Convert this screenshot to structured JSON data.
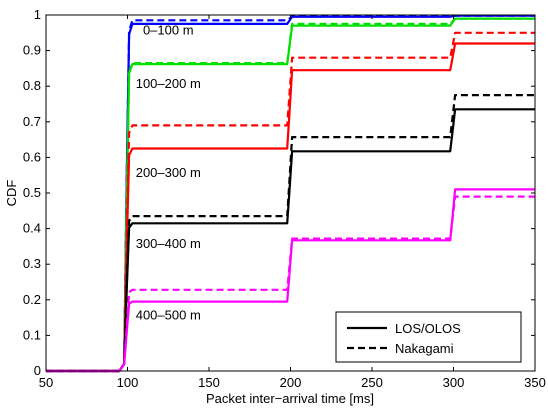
{
  "chart_data": {
    "type": "line",
    "xlabel": "Packet inter−arrival time [ms]",
    "ylabel": "CDF",
    "xlim": [
      50,
      350
    ],
    "ylim": [
      0,
      1
    ],
    "xticks": [
      50,
      100,
      150,
      200,
      250,
      300,
      350
    ],
    "yticks": [
      0,
      0.1,
      0.2,
      0.3,
      0.4,
      0.5,
      0.6,
      0.7,
      0.8,
      0.9,
      1
    ],
    "xtick_labels": [
      "50",
      "100",
      "150",
      "200",
      "250",
      "300",
      "350"
    ],
    "ytick_labels": [
      "0",
      "0.1",
      "0.2",
      "0.3",
      "0.4",
      "0.5",
      "0.6",
      "0.7",
      "0.8",
      "0.9",
      "1"
    ],
    "grid": false,
    "legend": {
      "position": "bottom-right",
      "entries": [
        {
          "name": "LOS/OLOS",
          "style": "solid"
        },
        {
          "name": "Nakagami",
          "style": "dashed"
        }
      ]
    },
    "annotations": [
      {
        "text": "0–100 m",
        "x": 125,
        "y": 0.945
      },
      {
        "text": "100–200 m",
        "x": 125,
        "y": 0.795
      },
      {
        "text": "200–300 m",
        "x": 125,
        "y": 0.545
      },
      {
        "text": "300–400 m",
        "x": 125,
        "y": 0.345
      },
      {
        "text": "400–500 m",
        "x": 125,
        "y": 0.145
      }
    ],
    "groups": [
      {
        "color": "#0000ff",
        "solid": [
          0.975,
          0.995,
          0.998
        ],
        "dashed": [
          0.985,
          0.996,
          0.998
        ]
      },
      {
        "color": "#00e000",
        "solid": [
          0.862,
          0.97,
          0.99
        ],
        "dashed": [
          0.865,
          0.975,
          0.99
        ]
      },
      {
        "color": "#ff0000",
        "solid": [
          0.625,
          0.845,
          0.92
        ],
        "dashed": [
          0.69,
          0.88,
          0.95
        ]
      },
      {
        "color": "#000000",
        "solid": [
          0.415,
          0.617,
          0.735
        ],
        "dashed": [
          0.435,
          0.657,
          0.775
        ]
      },
      {
        "color": "#ff00ff",
        "solid": [
          0.195,
          0.367,
          0.51
        ],
        "dashed": [
          0.228,
          0.372,
          0.49
        ]
      }
    ]
  }
}
